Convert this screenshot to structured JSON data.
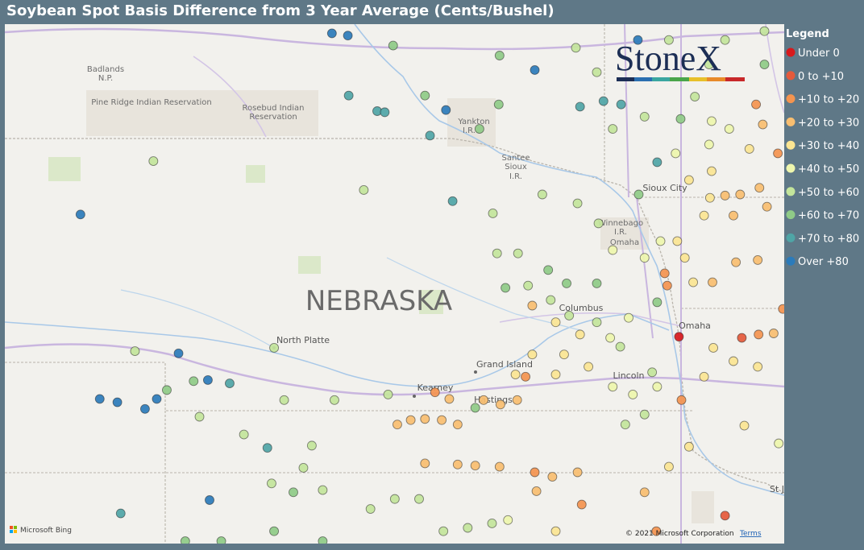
{
  "title": "Soybean Spot Basis Difference from 3 Year Average (Cents/Bushel)",
  "logo": "StoneX",
  "legend": {
    "title": "Legend",
    "items": [
      {
        "label": "Under 0",
        "color": "#d7191c"
      },
      {
        "label": "0 to +10",
        "color": "#e55a3b"
      },
      {
        "label": "+10 to +20",
        "color": "#f4944f"
      },
      {
        "label": "+20 to +30",
        "color": "#f8be70"
      },
      {
        "label": "+30 to +40",
        "color": "#fbe592"
      },
      {
        "label": "+40 to +50",
        "color": "#eef6ad"
      },
      {
        "label": "+50 to +60",
        "color": "#c3e59b"
      },
      {
        "label": "+60 to +70",
        "color": "#8fcb87"
      },
      {
        "label": "+70 to +80",
        "color": "#4fa5a6"
      },
      {
        "label": "Over +80",
        "color": "#2b7bba"
      }
    ]
  },
  "map_labels": [
    "Badlands",
    "N.P.",
    "Pine Ridge Indian Reservation",
    "Rosebud Indian",
    "Reservation",
    "Yankton",
    "I.R.",
    "Santee",
    "Sioux",
    "I.R.",
    "Sioux City",
    "Winnebago",
    "I.R.",
    "Omaha",
    "NEBRASKA",
    "North Platte",
    "Columbus",
    "Grand Island",
    "Kearney",
    "Hastings",
    "Omaha",
    "Lincoln",
    "St J"
  ],
  "attribution": {
    "provider": "Microsoft Bing",
    "copyright": "© 2021 Microsoft Corporation",
    "terms": "Terms"
  },
  "points": [
    [
      -103.04,
      42.32,
      9
    ],
    [
      -102.81,
      40.66,
      9
    ],
    [
      -102.6,
      40.63,
      9
    ],
    [
      -102.27,
      40.57,
      9
    ],
    [
      -102.13,
      40.66,
      9
    ],
    [
      -101.87,
      41.07,
      9
    ],
    [
      -101.52,
      40.83,
      9
    ],
    [
      -101.26,
      40.8,
      8
    ],
    [
      -101.5,
      39.75,
      9
    ],
    [
      -102.56,
      39.63,
      8
    ],
    [
      -100.81,
      40.22,
      8
    ],
    [
      -100.04,
      43.95,
      9
    ],
    [
      -99.85,
      43.93,
      9
    ],
    [
      -99.84,
      43.39,
      8
    ],
    [
      -99.5,
      43.25,
      8
    ],
    [
      -99.41,
      43.24,
      8
    ],
    [
      -98.68,
      43.26,
      9
    ],
    [
      -98.87,
      43.03,
      8
    ],
    [
      -98.6,
      42.44,
      8
    ],
    [
      -97.62,
      43.62,
      9
    ],
    [
      -97.08,
      43.29,
      8
    ],
    [
      -96.8,
      43.34,
      8
    ],
    [
      -96.59,
      43.31,
      8
    ],
    [
      -96.39,
      43.89,
      9
    ],
    [
      -96.16,
      42.79,
      8
    ],
    [
      -96.38,
      42.5,
      7
    ],
    [
      -97.97,
      41.66,
      7
    ],
    [
      -97.46,
      41.82,
      7
    ],
    [
      -97.24,
      41.7,
      7
    ],
    [
      -96.88,
      41.7,
      7
    ],
    [
      -98.33,
      40.58,
      7
    ],
    [
      -98.28,
      43.09,
      7
    ],
    [
      -99.31,
      43.84,
      7
    ],
    [
      -98.04,
      43.75,
      7
    ],
    [
      -98.05,
      43.31,
      7
    ],
    [
      -98.93,
      43.39,
      7
    ],
    [
      -102.17,
      42.8,
      6
    ],
    [
      -99.66,
      42.54,
      6
    ],
    [
      -98.12,
      42.33,
      6
    ],
    [
      -97.53,
      42.5,
      6
    ],
    [
      -97.11,
      42.42,
      6
    ],
    [
      -96.86,
      42.24,
      6
    ],
    [
      -98.07,
      41.97,
      6
    ],
    [
      -97.82,
      41.97,
      6
    ],
    [
      -97.7,
      41.68,
      6
    ],
    [
      -97.43,
      41.55,
      6
    ],
    [
      -97.21,
      41.41,
      6
    ],
    [
      -96.88,
      41.35,
      6
    ],
    [
      -96.6,
      41.13,
      6
    ],
    [
      -96.22,
      40.9,
      6
    ],
    [
      -100.61,
      40.65,
      6
    ],
    [
      -100.01,
      40.65,
      6
    ],
    [
      -99.37,
      40.7,
      6
    ],
    [
      -101.09,
      40.34,
      6
    ],
    [
      -100.28,
      40.24,
      6
    ],
    [
      -100.38,
      40.04,
      6
    ],
    [
      -100.76,
      39.9,
      6
    ],
    [
      -100.5,
      39.82,
      7
    ],
    [
      -100.15,
      39.84,
      6
    ],
    [
      -102.39,
      41.09,
      6
    ],
    [
      -102.01,
      40.74,
      7
    ],
    [
      -101.69,
      40.82,
      7
    ],
    [
      -101.62,
      40.5,
      6
    ],
    [
      -100.73,
      41.12,
      6
    ],
    [
      -95.73,
      41.71,
      4
    ],
    [
      -95.5,
      41.71,
      3
    ],
    [
      -95.22,
      41.89,
      3
    ],
    [
      -94.96,
      41.91,
      3
    ],
    [
      -95.53,
      42.47,
      4
    ],
    [
      -95.35,
      42.49,
      3
    ],
    [
      -95.17,
      42.5,
      3
    ],
    [
      -94.94,
      42.56,
      3
    ],
    [
      -94.85,
      42.39,
      3
    ],
    [
      -95.6,
      42.31,
      4
    ],
    [
      -95.25,
      42.31,
      3
    ],
    [
      -95.78,
      42.63,
      4
    ],
    [
      -95.51,
      42.71,
      4
    ],
    [
      -96.07,
      41.79,
      2
    ],
    [
      -96.04,
      41.68,
      2
    ],
    [
      -95.9,
      41.22,
      0
    ],
    [
      -95.87,
      40.65,
      2
    ],
    [
      -95.15,
      41.21,
      1
    ],
    [
      -94.95,
      41.24,
      2
    ],
    [
      -94.77,
      41.25,
      3
    ],
    [
      -94.66,
      41.47,
      2
    ],
    [
      -94.98,
      43.31,
      2
    ],
    [
      -94.9,
      43.13,
      3
    ],
    [
      -94.72,
      42.87,
      2
    ],
    [
      -95.6,
      40.86,
      4
    ],
    [
      -95.49,
      41.12,
      4
    ],
    [
      -95.25,
      41.0,
      4
    ],
    [
      -94.96,
      40.95,
      4
    ],
    [
      -96.16,
      40.77,
      5
    ],
    [
      -96.45,
      40.7,
      5
    ],
    [
      -96.69,
      40.77,
      5
    ],
    [
      -96.98,
      40.95,
      4
    ],
    [
      -97.27,
      41.06,
      4
    ],
    [
      -97.37,
      40.88,
      4
    ],
    [
      -97.65,
      41.06,
      4
    ],
    [
      -97.85,
      40.88,
      4
    ],
    [
      -97.73,
      40.86,
      2
    ],
    [
      -97.83,
      40.65,
      3
    ],
    [
      -98.03,
      40.61,
      3
    ],
    [
      -98.23,
      40.65,
      3
    ],
    [
      -98.64,
      40.66,
      3
    ],
    [
      -98.81,
      40.72,
      2
    ],
    [
      -99.26,
      40.43,
      3
    ],
    [
      -99.1,
      40.47,
      3
    ],
    [
      -98.93,
      40.48,
      3
    ],
    [
      -98.73,
      40.47,
      3
    ],
    [
      -98.54,
      40.43,
      3
    ],
    [
      -98.93,
      40.08,
      3
    ],
    [
      -98.54,
      40.07,
      3
    ],
    [
      -98.33,
      40.06,
      3
    ],
    [
      -98.04,
      40.05,
      3
    ],
    [
      -97.62,
      40.0,
      2
    ],
    [
      -97.41,
      39.96,
      3
    ],
    [
      -97.11,
      40.0,
      3
    ],
    [
      -97.6,
      39.83,
      3
    ],
    [
      -97.06,
      39.71,
      2
    ],
    [
      -96.31,
      39.82,
      3
    ],
    [
      -96.02,
      40.05,
      4
    ],
    [
      -95.78,
      40.23,
      4
    ],
    [
      -95.35,
      39.61,
      1
    ],
    [
      -95.12,
      40.42,
      4
    ],
    [
      -94.71,
      40.26,
      5
    ],
    [
      -96.54,
      40.43,
      6
    ],
    [
      -96.31,
      40.52,
      6
    ],
    [
      -97.65,
      41.5,
      3
    ],
    [
      -97.37,
      41.35,
      4
    ],
    [
      -97.08,
      41.24,
      4
    ],
    [
      -96.72,
      41.21,
      5
    ],
    [
      -96.5,
      41.39,
      5
    ],
    [
      -96.12,
      42.08,
      5
    ],
    [
      -96.31,
      41.93,
      5
    ],
    [
      -96.69,
      42.0,
      5
    ],
    [
      -95.92,
      42.08,
      4
    ],
    [
      -95.83,
      41.93,
      4
    ],
    [
      -96.16,
      41.53,
      7
    ],
    [
      -95.51,
      43.16,
      5
    ],
    [
      -95.3,
      43.09,
      5
    ],
    [
      -95.06,
      42.91,
      4
    ],
    [
      -95.54,
      43.67,
      6
    ],
    [
      -94.88,
      43.67,
      7
    ],
    [
      -96.02,
      43.89,
      6
    ],
    [
      -95.35,
      43.89,
      6
    ],
    [
      -94.88,
      43.97,
      6
    ],
    [
      -96.88,
      43.6,
      6
    ],
    [
      -97.13,
      43.82,
      6
    ],
    [
      -96.69,
      43.09,
      6
    ],
    [
      -96.31,
      43.2,
      6
    ],
    [
      -95.88,
      43.18,
      7
    ],
    [
      -95.71,
      43.38,
      6
    ],
    [
      -95.54,
      42.95,
      5
    ],
    [
      -95.94,
      42.87,
      5
    ],
    [
      -101.79,
      39.38,
      7
    ],
    [
      -101.36,
      39.38,
      7
    ],
    [
      -100.73,
      39.47,
      7
    ],
    [
      -100.15,
      39.38,
      7
    ],
    [
      -99.58,
      39.67,
      6
    ],
    [
      -99.29,
      39.76,
      6
    ],
    [
      -99.0,
      39.76,
      6
    ],
    [
      -98.71,
      39.47,
      6
    ],
    [
      -98.42,
      39.5,
      6
    ],
    [
      -98.13,
      39.54,
      6
    ],
    [
      -97.94,
      39.57,
      5
    ],
    [
      -97.37,
      39.47,
      4
    ],
    [
      -96.17,
      39.47,
      2
    ]
  ]
}
